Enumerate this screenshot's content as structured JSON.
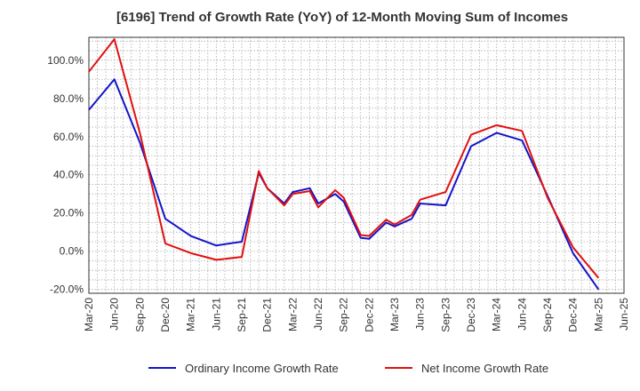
{
  "chart_data": {
    "type": "line",
    "title": "[6196]  Trend of Growth Rate (YoY) of 12-Month Moving Sum of Incomes",
    "xlabel": "",
    "ylabel": "",
    "ylim": [
      -22,
      112
    ],
    "grid": true,
    "legend_position": "bottom",
    "y_ticks": [
      -20,
      0,
      20,
      40,
      60,
      80,
      100
    ],
    "y_tick_labels": [
      "-20.0%",
      "0.0%",
      "20.0%",
      "40.0%",
      "60.0%",
      "80.0%",
      "100.0%"
    ],
    "x_tick_labels": [
      "Mar-20",
      "Jun-20",
      "Sep-20",
      "Dec-20",
      "Mar-21",
      "Jun-21",
      "Sep-21",
      "Dec-21",
      "Mar-22",
      "Jun-22",
      "Sep-22",
      "Dec-22",
      "Mar-23",
      "Jun-23",
      "Sep-23",
      "Dec-23",
      "Mar-24",
      "Jun-24",
      "Sep-24",
      "Dec-24",
      "Mar-25",
      "Jun-25"
    ],
    "x": [
      "Mar-20",
      "Apr-20",
      "May-20",
      "Jun-20",
      "Jul-20",
      "Aug-20",
      "Sep-20",
      "Oct-20",
      "Nov-20",
      "Dec-20",
      "Jan-21",
      "Feb-21",
      "Mar-21",
      "Apr-21",
      "May-21",
      "Jun-21",
      "Jul-21",
      "Aug-21",
      "Sep-21",
      "Oct-21",
      "Nov-21",
      "Dec-21",
      "Jan-22",
      "Feb-22",
      "Mar-22",
      "Apr-22",
      "May-22",
      "Jun-22",
      "Jul-22",
      "Aug-22",
      "Sep-22",
      "Oct-22",
      "Nov-22",
      "Dec-22",
      "Jan-23",
      "Feb-23",
      "Mar-23",
      "Apr-23",
      "May-23",
      "Jun-23",
      "Jul-23",
      "Aug-23",
      "Sep-23",
      "Oct-23",
      "Nov-23",
      "Dec-23",
      "Jan-24",
      "Feb-24",
      "Mar-24",
      "Apr-24",
      "May-24",
      "Jun-24",
      "Jul-24",
      "Aug-24",
      "Sep-24",
      "Oct-24",
      "Nov-24",
      "Dec-24",
      "Jan-25",
      "Feb-25",
      "Mar-25",
      "Apr-25",
      "May-25",
      "Jun-25"
    ],
    "series": [
      {
        "name": "Ordinary Income Growth Rate",
        "color": "#1414c8",
        "points": [
          {
            "x": "Mar-20",
            "y": 74
          },
          {
            "x": "Jun-20",
            "y": 90
          },
          {
            "x": "Sep-20",
            "y": 57
          },
          {
            "x": "Dec-20",
            "y": 17
          },
          {
            "x": "Mar-21",
            "y": 8
          },
          {
            "x": "Jun-21",
            "y": 3
          },
          {
            "x": "Sep-21",
            "y": 5
          },
          {
            "x": "Nov-21",
            "y": 41
          },
          {
            "x": "Dec-21",
            "y": 33
          },
          {
            "x": "Feb-22",
            "y": 25
          },
          {
            "x": "Mar-22",
            "y": 31
          },
          {
            "x": "May-22",
            "y": 33
          },
          {
            "x": "Jun-22",
            "y": 25
          },
          {
            "x": "Aug-22",
            "y": 30
          },
          {
            "x": "Sep-22",
            "y": 26
          },
          {
            "x": "Nov-22",
            "y": 7
          },
          {
            "x": "Dec-22",
            "y": 6.5
          },
          {
            "x": "Feb-23",
            "y": 15
          },
          {
            "x": "Mar-23",
            "y": 13
          },
          {
            "x": "May-23",
            "y": 17
          },
          {
            "x": "Jun-23",
            "y": 25
          },
          {
            "x": "Sep-23",
            "y": 24
          },
          {
            "x": "Dec-23",
            "y": 55
          },
          {
            "x": "Mar-24",
            "y": 62
          },
          {
            "x": "Jun-24",
            "y": 58
          },
          {
            "x": "Sep-24",
            "y": 29
          },
          {
            "x": "Dec-24",
            "y": -1
          },
          {
            "x": "Mar-25",
            "y": -20
          }
        ]
      },
      {
        "name": "Net Income Growth Rate",
        "color": "#e01010",
        "points": [
          {
            "x": "Mar-20",
            "y": 94
          },
          {
            "x": "Jun-20",
            "y": 111
          },
          {
            "x": "Sep-20",
            "y": 62
          },
          {
            "x": "Dec-20",
            "y": 4
          },
          {
            "x": "Mar-21",
            "y": -1
          },
          {
            "x": "Jun-21",
            "y": -4.5
          },
          {
            "x": "Sep-21",
            "y": -3
          },
          {
            "x": "Nov-21",
            "y": 42
          },
          {
            "x": "Dec-21",
            "y": 33
          },
          {
            "x": "Feb-22",
            "y": 24
          },
          {
            "x": "Mar-22",
            "y": 30
          },
          {
            "x": "May-22",
            "y": 31.5
          },
          {
            "x": "Jun-22",
            "y": 23
          },
          {
            "x": "Aug-22",
            "y": 32
          },
          {
            "x": "Sep-22",
            "y": 28
          },
          {
            "x": "Nov-22",
            "y": 8.5
          },
          {
            "x": "Dec-22",
            "y": 8
          },
          {
            "x": "Feb-23",
            "y": 16.5
          },
          {
            "x": "Mar-23",
            "y": 14
          },
          {
            "x": "May-23",
            "y": 19
          },
          {
            "x": "Jun-23",
            "y": 27
          },
          {
            "x": "Sep-23",
            "y": 31
          },
          {
            "x": "Dec-23",
            "y": 61
          },
          {
            "x": "Mar-24",
            "y": 66
          },
          {
            "x": "Jun-24",
            "y": 63
          },
          {
            "x": "Sep-24",
            "y": 28
          },
          {
            "x": "Dec-24",
            "y": 2
          },
          {
            "x": "Mar-25",
            "y": -14
          }
        ]
      }
    ]
  }
}
